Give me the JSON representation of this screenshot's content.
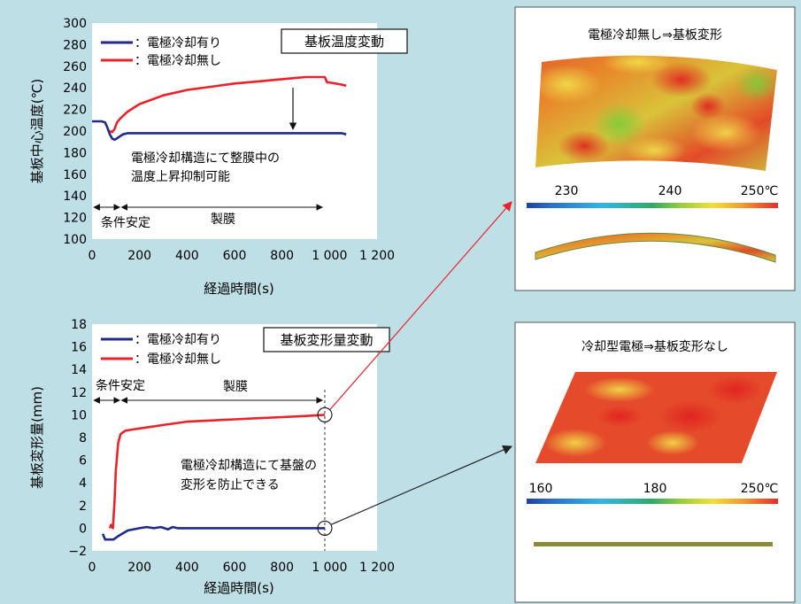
{
  "colors": {
    "background": "#bddfe5",
    "series_with_cooling": "#1f2a8a",
    "series_without_cooling": "#e8232a",
    "connector_red": "#e8232a",
    "connector_black": "#222222"
  },
  "chart_data": [
    {
      "type": "line",
      "title": "基板温度変動",
      "xlabel": "経過時間(s)",
      "ylabel": "基板中心温度(℃)",
      "xlim": [
        0,
        1200
      ],
      "ylim": [
        100,
        300
      ],
      "xticks": [
        0,
        200,
        400,
        600,
        800,
        1000,
        1200
      ],
      "xtick_labels": [
        "0",
        "200",
        "400",
        "600",
        "800",
        "1 000",
        "1 200"
      ],
      "yticks": [
        100,
        120,
        140,
        160,
        180,
        200,
        220,
        240,
        260,
        280,
        300
      ],
      "ytick_labels": [
        "100",
        "120",
        "140",
        "160",
        "180",
        "200",
        "220",
        "240",
        "260",
        "280",
        "300"
      ],
      "legend": [
        "：電極冷却有り",
        "：電極冷却無し"
      ],
      "series": [
        {
          "name": "電極冷却有り",
          "color": "#1f2a8a",
          "x": [
            0,
            40,
            55,
            65,
            75,
            85,
            95,
            110,
            130,
            150,
            200,
            400,
            600,
            800,
            1000,
            1050,
            1070
          ],
          "y": [
            209,
            209,
            208,
            203,
            197,
            193,
            192,
            194,
            197,
            198,
            198,
            198,
            198,
            198,
            198,
            198,
            197
          ]
        },
        {
          "name": "電極冷却無し",
          "color": "#e8232a",
          "x": [
            75,
            85,
            95,
            105,
            120,
            150,
            200,
            250,
            300,
            400,
            500,
            600,
            700,
            800,
            850,
            900,
            950,
            980,
            990,
            1000,
            1050,
            1070
          ],
          "y": [
            200,
            199,
            202,
            208,
            212,
            218,
            225,
            229,
            233,
            238,
            241,
            244,
            246,
            248,
            249,
            250,
            250,
            250,
            245,
            245,
            243,
            242
          ]
        }
      ],
      "annotations": [
        "電極冷却構造にて整膜中の",
        "温度上昇抑制可能"
      ],
      "ranges": [
        {
          "label": "条件安定",
          "x": [
            0,
            120
          ]
        },
        {
          "label": "製膜",
          "x": [
            120,
            970
          ]
        }
      ]
    },
    {
      "type": "line",
      "title": "基板変形量変動",
      "xlabel": "経過時間(s)",
      "ylabel": "基板変形量(mm)",
      "xlim": [
        0,
        1200
      ],
      "ylim": [
        -2,
        18
      ],
      "xticks": [
        0,
        200,
        400,
        600,
        800,
        1000,
        1200
      ],
      "xtick_labels": [
        "0",
        "200",
        "400",
        "600",
        "800",
        "1 000",
        "1 200"
      ],
      "yticks": [
        -2,
        0,
        2,
        4,
        6,
        8,
        10,
        12,
        14,
        16,
        18
      ],
      "ytick_labels": [
        "−2",
        "0",
        "2",
        "4",
        "6",
        "8",
        "10",
        "12",
        "14",
        "16",
        "18"
      ],
      "legend": [
        "：電極冷却有り",
        "：電極冷却無し"
      ],
      "series": [
        {
          "name": "電極冷却有り",
          "color": "#1f2a8a",
          "x": [
            45,
            55,
            70,
            90,
            110,
            150,
            200,
            230,
            260,
            290,
            320,
            340,
            360,
            400,
            600,
            800,
            980
          ],
          "y": [
            -0.5,
            -1,
            -1,
            -1,
            -0.7,
            -0.2,
            0,
            0.1,
            0,
            0.1,
            -0.1,
            0.1,
            0,
            0,
            0,
            0,
            0
          ]
        },
        {
          "name": "電極冷却無し",
          "color": "#e8232a",
          "x": [
            75,
            80,
            88,
            95,
            100,
            110,
            120,
            140,
            170,
            200,
            300,
            400,
            500,
            600,
            700,
            800,
            900,
            980
          ],
          "y": [
            0,
            0.3,
            0,
            2.5,
            5,
            7.5,
            8.3,
            8.6,
            8.7,
            8.8,
            9.1,
            9.4,
            9.5,
            9.6,
            9.7,
            9.8,
            9.9,
            10
          ]
        }
      ],
      "annotations": [
        "電極冷却構造にて基盤の",
        "変形を防止できる"
      ],
      "ranges": [
        {
          "label": "条件安定",
          "x": [
            0,
            120
          ]
        },
        {
          "label": "製膜",
          "x": [
            120,
            970
          ]
        }
      ]
    }
  ],
  "panels": {
    "top": {
      "title": "電極冷却無し⇒基板変形",
      "scale": [
        "230",
        "240",
        "250℃"
      ]
    },
    "bottom": {
      "title": "冷却型電極⇒基板変形なし",
      "scale": [
        "160",
        "180",
        "250℃"
      ]
    }
  }
}
